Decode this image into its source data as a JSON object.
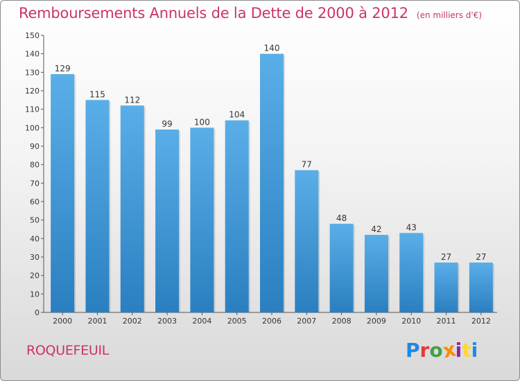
{
  "chart_data": {
    "type": "bar",
    "title": "Remboursements Annuels de la Dette de 2000 à 2012",
    "subtitle": "(en milliers d'€)",
    "xlabel": "",
    "ylabel": "",
    "categories": [
      "2000",
      "2001",
      "2002",
      "2003",
      "2004",
      "2005",
      "2006",
      "2007",
      "2008",
      "2009",
      "2010",
      "2011",
      "2012"
    ],
    "values": [
      129,
      115,
      112,
      99,
      100,
      104,
      140,
      77,
      48,
      42,
      43,
      27,
      27
    ],
    "ylim": [
      0,
      150
    ],
    "yticks": [
      0,
      10,
      20,
      30,
      40,
      50,
      60,
      70,
      80,
      90,
      100,
      110,
      120,
      130,
      140,
      150
    ],
    "grid": false,
    "bar_color": "#4a9fdd"
  },
  "footer": {
    "commune": "ROQUEFEUIL",
    "brand": "Proxiti"
  },
  "colors": {
    "title": "#cc3366",
    "bar_top": "#5aaee8",
    "bar_bottom": "#2a7fc0",
    "brand_letters": [
      "#1e88e5",
      "#e53935",
      "#43a047",
      "#fb8c00",
      "#8e24aa",
      "#fdd835",
      "#1e88e5"
    ]
  }
}
